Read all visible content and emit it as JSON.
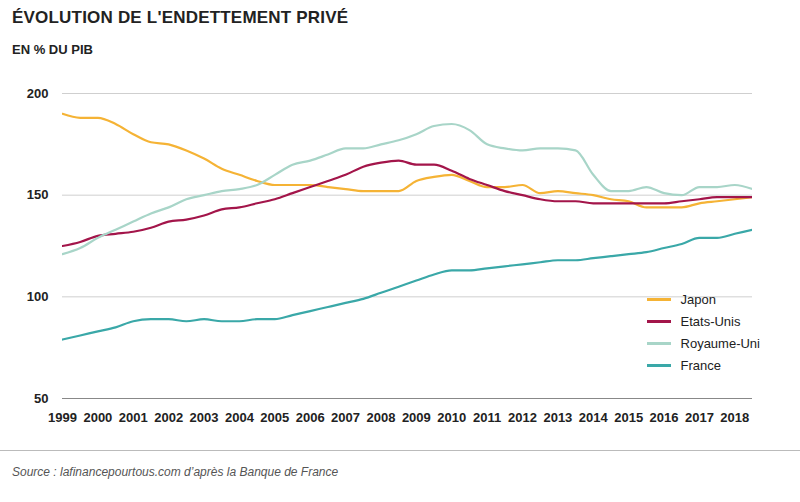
{
  "chart_data": {
    "type": "line",
    "title": "ÉVOLUTION DE L'ENDETTEMENT PRIVÉ",
    "subtitle": "EN % DU PIB",
    "caption": "Source : lafinancepourtous.com d’après la Banque de France",
    "x": [
      1999,
      1999.5,
      2000,
      2000.5,
      2001,
      2001.5,
      2002,
      2002.5,
      2003,
      2003.5,
      2004,
      2004.5,
      2005,
      2005.5,
      2006,
      2006.5,
      2007,
      2007.5,
      2008,
      2008.5,
      2009,
      2009.5,
      2010,
      2010.5,
      2011,
      2011.5,
      2012,
      2012.5,
      2013,
      2013.5,
      2014,
      2014.5,
      2015,
      2015.5,
      2016,
      2016.5,
      2017,
      2017.5,
      2018,
      2018.5
    ],
    "series": [
      {
        "name": "Japon",
        "color": "#f5b335",
        "values": [
          190,
          188,
          188,
          185,
          180,
          176,
          175,
          172,
          168,
          163,
          160,
          157,
          155,
          155,
          155,
          154,
          153,
          152,
          152,
          152,
          157,
          159,
          160,
          157,
          154,
          154,
          155,
          151,
          152,
          151,
          150,
          148,
          147,
          144,
          144,
          144,
          146,
          147,
          148,
          149
        ]
      },
      {
        "name": "Etats-Unis",
        "color": "#a3154a",
        "values": [
          125,
          127,
          130,
          131,
          132,
          134,
          137,
          138,
          140,
          143,
          144,
          146,
          148,
          151,
          154,
          157,
          160,
          164,
          166,
          167,
          165,
          165,
          162,
          158,
          155,
          152,
          150,
          148,
          147,
          147,
          146,
          146,
          146,
          146,
          146,
          147,
          148,
          149,
          149,
          149
        ]
      },
      {
        "name": "Royaume-Uni",
        "color": "#a8d5c8",
        "values": [
          121,
          124,
          129,
          133,
          137,
          141,
          144,
          148,
          150,
          152,
          153,
          155,
          160,
          165,
          167,
          170,
          173,
          173,
          175,
          177,
          180,
          184,
          185,
          182,
          175,
          173,
          172,
          173,
          173,
          172,
          160,
          152,
          152,
          154,
          151,
          150,
          154,
          154,
          155,
          153
        ]
      },
      {
        "name": "France",
        "color": "#3aa8a8",
        "values": [
          79,
          81,
          83,
          85,
          88,
          89,
          89,
          88,
          89,
          88,
          88,
          89,
          89,
          91,
          93,
          95,
          97,
          99,
          102,
          105,
          108,
          111,
          113,
          113,
          114,
          115,
          116,
          117,
          118,
          118,
          119,
          120,
          121,
          122,
          124,
          126,
          129,
          129,
          131,
          133
        ]
      }
    ],
    "xlim": [
      1999,
      2018.5
    ],
    "xticks": [
      1999,
      2000,
      2001,
      2002,
      2003,
      2004,
      2005,
      2006,
      2007,
      2008,
      2009,
      2010,
      2011,
      2012,
      2013,
      2014,
      2015,
      2016,
      2017,
      2018
    ],
    "ylim": [
      50,
      200
    ],
    "yticks": [
      50,
      100,
      150,
      200
    ],
    "grid": true,
    "legend": "right"
  }
}
